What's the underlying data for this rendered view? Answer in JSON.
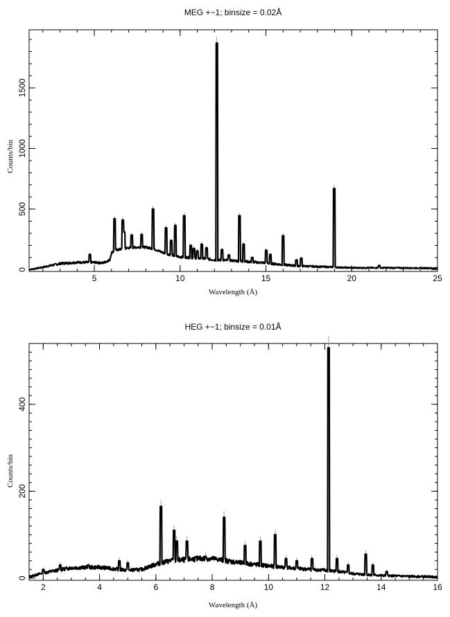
{
  "chart_data": [
    {
      "type": "line",
      "title": "MEG +−1; binsize = 0.02Å",
      "xlabel": "Wavelength (Å)",
      "ylabel": "Counts/bin",
      "xlim": [
        1.2,
        25
      ],
      "ylim": [
        -15,
        1980
      ],
      "xticks": [
        5,
        10,
        15,
        20,
        25
      ],
      "xtick_labels": [
        "5",
        "10",
        "15",
        "20",
        "25"
      ],
      "yticks": [
        0,
        500,
        1000,
        1500
      ],
      "ytick_labels": [
        "0",
        "500",
        "1000",
        "1500"
      ],
      "ytick_label_rotation": "vertical",
      "series": [
        {
          "continuum_x": [
            1.2,
            2.0,
            3.0,
            4.0,
            5.0,
            5.5,
            5.9,
            6.0,
            6.2,
            6.6,
            7.0,
            7.5,
            8.0,
            8.5,
            9.0,
            9.5,
            10.0,
            10.5,
            11.0,
            11.5,
            12.0,
            13.0,
            14.0,
            15.0,
            16.0,
            17.0,
            18.0,
            19.0,
            20.0,
            22.0,
            25.0
          ],
          "continuum_y": [
            0,
            20,
            50,
            60,
            60,
            55,
            80,
            140,
            160,
            170,
            180,
            185,
            185,
            170,
            140,
            120,
            105,
            100,
            95,
            90,
            80,
            75,
            65,
            55,
            40,
            30,
            25,
            20,
            15,
            15,
            12
          ],
          "lines_x": [
            4.73,
            6.18,
            6.65,
            6.74,
            7.17,
            7.76,
            8.42,
            9.17,
            9.48,
            9.71,
            10.24,
            10.62,
            10.8,
            11.0,
            11.25,
            11.54,
            12.13,
            12.43,
            12.83,
            13.45,
            13.7,
            14.2,
            15.01,
            15.26,
            16.0,
            16.78,
            17.05,
            18.97,
            21.6
          ],
          "lines_y": [
            125,
            420,
            410,
            310,
            285,
            290,
            500,
            345,
            240,
            365,
            445,
            200,
            175,
            155,
            210,
            180,
            1870,
            165,
            120,
            445,
            210,
            100,
            160,
            125,
            280,
            80,
            95,
            670,
            35
          ]
        }
      ]
    },
    {
      "type": "line",
      "title": "HEG +−1; binsize = 0.01Å",
      "xlabel": "Wavelength (Å)",
      "ylabel": "Counts/bin",
      "xlim": [
        1.5,
        16
      ],
      "ylim": [
        -5,
        540
      ],
      "xticks": [
        2,
        4,
        6,
        8,
        10,
        12,
        14,
        16
      ],
      "xtick_labels": [
        "2",
        "4",
        "6",
        "8",
        "10",
        "12",
        "14",
        "16"
      ],
      "yticks": [
        0,
        200,
        400
      ],
      "ytick_labels": [
        "0",
        "200",
        "400"
      ],
      "ytick_label_rotation": "vertical",
      "series": [
        {
          "continuum_x": [
            1.5,
            2.0,
            3.0,
            4.0,
            5.0,
            5.5,
            6.0,
            6.5,
            7.0,
            7.5,
            8.0,
            8.5,
            9.0,
            10.0,
            11.0,
            12.0,
            12.5,
            13.0,
            14.0,
            15.0,
            16.0
          ],
          "continuum_y": [
            3,
            12,
            24,
            25,
            18,
            20,
            32,
            40,
            42,
            45,
            45,
            40,
            35,
            28,
            22,
            18,
            15,
            10,
            6,
            4,
            3
          ],
          "lines_x": [
            2.0,
            2.6,
            3.6,
            4.7,
            5.0,
            6.18,
            6.65,
            6.74,
            7.1,
            7.76,
            8.42,
            9.17,
            9.71,
            10.24,
            10.62,
            11.0,
            11.54,
            12.13,
            12.43,
            12.83,
            13.45,
            13.7,
            14.2
          ],
          "lines_y": [
            20,
            30,
            30,
            40,
            35,
            165,
            110,
            85,
            85,
            50,
            140,
            75,
            85,
            100,
            45,
            40,
            45,
            530,
            45,
            30,
            55,
            30,
            15
          ]
        }
      ]
    }
  ]
}
